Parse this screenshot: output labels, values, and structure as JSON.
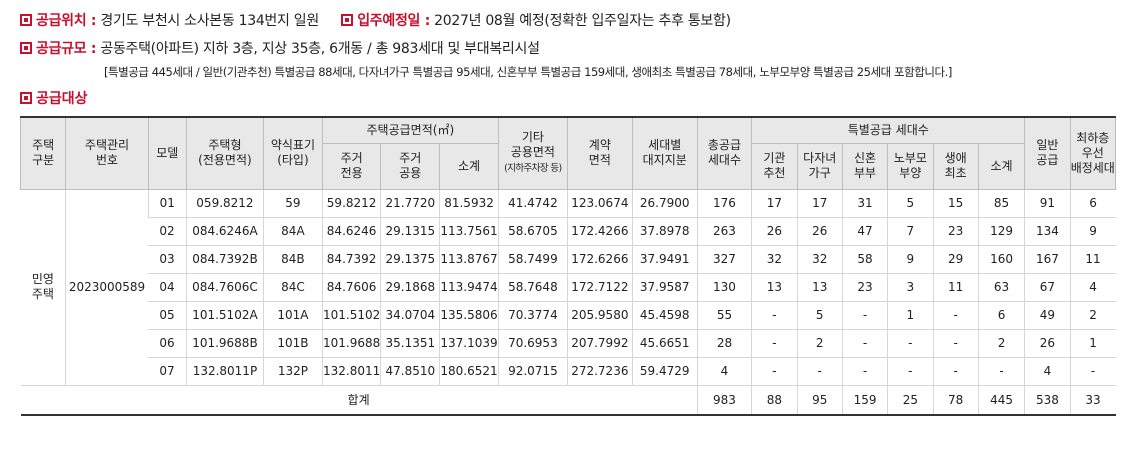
{
  "colors": {
    "accent": "#c8102e",
    "header_bg": "#e8e8e8"
  },
  "info": {
    "location_label": "공급위치 :",
    "location_value": "경기도 부천시 소사본동 134번지 일원",
    "movein_label": "입주예정일 :",
    "movein_value": "2027년 08월 예정(정확한 입주일자는 추후 통보함)",
    "scale_label": "공급규모 :",
    "scale_value": "공동주택(아파트) 지하 3층, 지상 35층, 6개동 / 총 983세대 및 부대복리시설",
    "note": "[특별공급 445세대 / 일반(기관추천) 특별공급 88세대, 다자녀가구 특별공급 95세대, 신혼부부 특별공급 159세대, 생애최초 특별공급 78세대, 노부모부양 특별공급 25세대 포함합니다.]",
    "section_label": "공급대상"
  },
  "table": {
    "headers": {
      "housing_type": "주택\n구분",
      "mgmt_no": "주택관리\n번호",
      "model": "모델",
      "unit_type": "주택형\n(전용면적)",
      "abbrev": "약식표기\n(타입)",
      "area_group": "주택공급면적(㎡)",
      "area_exclusive": "주거\n전용",
      "area_common": "주거\n공용",
      "area_subtotal": "소계",
      "other_common": "기타\n공용면적",
      "other_common_sub": "(지하주차장 등)",
      "contract_area": "계약\n면적",
      "land_share": "세대별\n대지지분",
      "total_supply": "총공급\n세대수",
      "special_group": "특별공급 세대수",
      "sp_institution": "기관\n추천",
      "sp_multichild": "다자녀\n가구",
      "sp_newlywed": "신혼\n부부",
      "sp_parents": "노부모\n부양",
      "sp_firsttime": "생애\n최초",
      "sp_subtotal": "소계",
      "general": "일반\n공급",
      "lowest_floor": "최하층\n우선\n배정세대"
    },
    "housing_type": "민영\n주택",
    "mgmt_no": "2023000589",
    "rows": [
      [
        "01",
        "059.8212",
        "59",
        "59.8212",
        "21.7720",
        "81.5932",
        "41.4742",
        "123.0674",
        "26.7900",
        "176",
        "17",
        "17",
        "31",
        "5",
        "15",
        "85",
        "91",
        "6"
      ],
      [
        "02",
        "084.6246A",
        "84A",
        "84.6246",
        "29.1315",
        "113.7561",
        "58.6705",
        "172.4266",
        "37.8978",
        "263",
        "26",
        "26",
        "47",
        "7",
        "23",
        "129",
        "134",
        "9"
      ],
      [
        "03",
        "084.7392B",
        "84B",
        "84.7392",
        "29.1375",
        "113.8767",
        "58.7499",
        "172.6266",
        "37.9491",
        "327",
        "32",
        "32",
        "58",
        "9",
        "29",
        "160",
        "167",
        "11"
      ],
      [
        "04",
        "084.7606C",
        "84C",
        "84.7606",
        "29.1868",
        "113.9474",
        "58.7648",
        "172.7122",
        "37.9587",
        "130",
        "13",
        "13",
        "23",
        "3",
        "11",
        "63",
        "67",
        "4"
      ],
      [
        "05",
        "101.5102A",
        "101A",
        "101.5102",
        "34.0704",
        "135.5806",
        "70.3774",
        "205.9580",
        "45.4598",
        "55",
        "-",
        "5",
        "-",
        "1",
        "-",
        "6",
        "49",
        "2"
      ],
      [
        "06",
        "101.9688B",
        "101B",
        "101.9688",
        "35.1351",
        "137.1039",
        "70.6953",
        "207.7992",
        "45.6651",
        "28",
        "-",
        "2",
        "-",
        "-",
        "-",
        "2",
        "26",
        "1"
      ],
      [
        "07",
        "132.8011P",
        "132P",
        "132.8011",
        "47.8510",
        "180.6521",
        "92.0715",
        "272.7236",
        "59.4729",
        "4",
        "-",
        "-",
        "-",
        "-",
        "-",
        "-",
        "4",
        "-"
      ]
    ],
    "total": {
      "label": "합계",
      "values": [
        "983",
        "88",
        "95",
        "159",
        "25",
        "78",
        "445",
        "538",
        "33"
      ]
    }
  }
}
